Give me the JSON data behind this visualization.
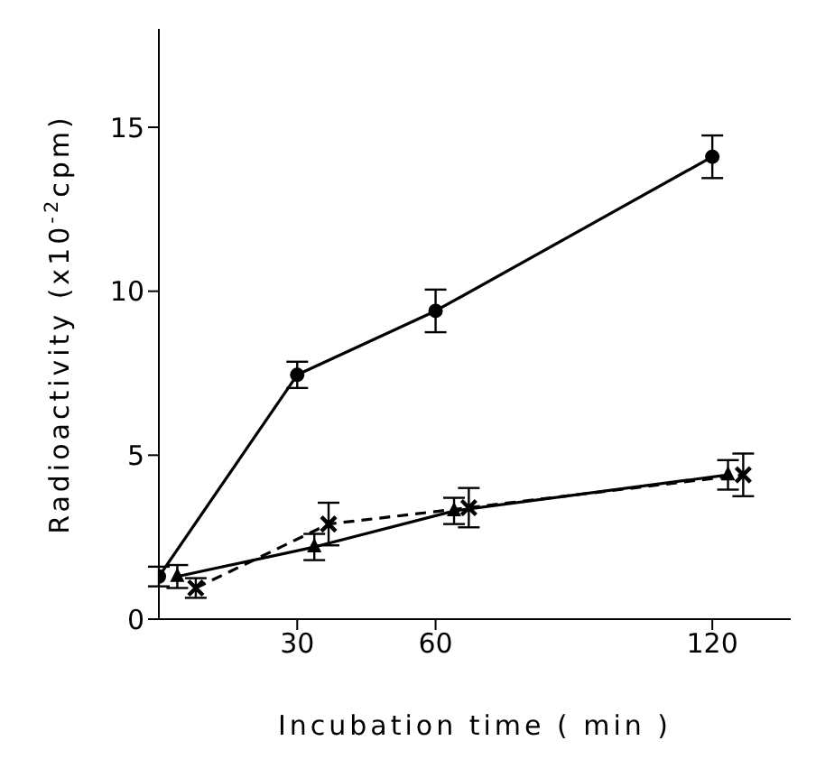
{
  "chart_data": {
    "type": "line",
    "xlabel": "Incubation  time  ( min )",
    "ylabel": "Radioactivity  (x10$^{-2}$cpm)",
    "xlim": [
      0,
      137
    ],
    "xticks": [
      30,
      60,
      120
    ],
    "ylim": [
      0,
      18
    ],
    "yticks": [
      0,
      5,
      10,
      15
    ],
    "series": [
      {
        "color": "#000000",
        "marker": "circle",
        "line_style": "solid",
        "x": [
          0,
          30,
          60,
          120
        ],
        "values": [
          1.3,
          7.45,
          9.4,
          14.1
        ],
        "errors": [
          0.3,
          0.4,
          0.65,
          0.65
        ]
      },
      {
        "color": "#000000",
        "marker": "triangle",
        "line_style": "solid",
        "x": [
          4,
          33.7,
          64,
          123.4
        ],
        "values": [
          1.3,
          2.2,
          3.3,
          4.4
        ],
        "errors": [
          0.35,
          0.4,
          0.4,
          0.45
        ]
      },
      {
        "color": "#000000",
        "marker": "cross",
        "line_style": "dashed",
        "x": [
          8,
          36.8,
          67.2,
          126.7
        ],
        "values": [
          0.95,
          2.9,
          3.4,
          4.4
        ],
        "errors": [
          0.3,
          0.65,
          0.6,
          0.65
        ]
      }
    ]
  }
}
